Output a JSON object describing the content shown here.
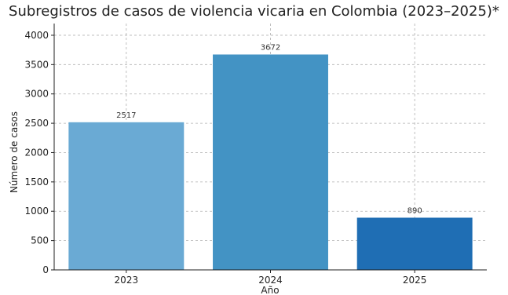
{
  "chart_data": {
    "type": "bar",
    "title": "Subregistros de casos de violencia vicaria en Colombia (2023–2025)*",
    "xlabel": "Año",
    "ylabel": "Número de casos",
    "categories": [
      "2023",
      "2024",
      "2025"
    ],
    "values": [
      2517,
      3672,
      890
    ],
    "data_labels": [
      "2517",
      "3672",
      "890"
    ],
    "ylim": [
      0,
      4200
    ],
    "yticks": [
      0,
      500,
      1000,
      1500,
      2000,
      2500,
      3000,
      3500,
      4000
    ],
    "ytick_labels": [
      "0",
      "500",
      "1000",
      "1500",
      "2000",
      "2500",
      "3000",
      "3500",
      "4000"
    ],
    "grid": true,
    "colors": [
      "#6aaad4",
      "#4393c4",
      "#1f6eb4"
    ]
  }
}
